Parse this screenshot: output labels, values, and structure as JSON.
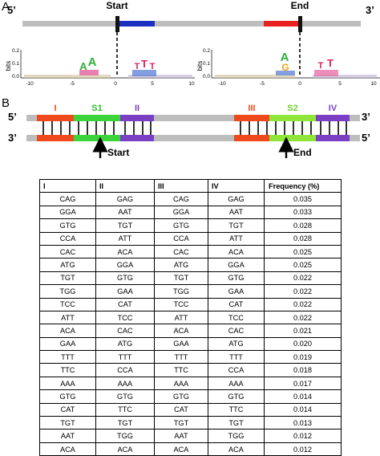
{
  "panel_a": {
    "label": "A",
    "five_prime": "5’",
    "three_prime": "3’",
    "start_label": "Start",
    "end_label": "End",
    "colors": {
      "strand": "#bdbdbd",
      "blue_region": "#1b2fc0",
      "red_region": "#e8201f",
      "marker": "#111111"
    },
    "logos": [
      {
        "y_axis_label": "bits",
        "y_ticks": [
          "0.2",
          "0.1",
          "0.0"
        ],
        "x_ticks": [
          "-10",
          "-5",
          "0",
          "5",
          "10"
        ],
        "letters": [
          "A",
          "A",
          "T",
          "T",
          "T"
        ]
      },
      {
        "y_axis_label": "bits",
        "y_ticks": [
          "0.2",
          "0.1",
          "0.0"
        ],
        "x_ticks": [
          "-10",
          "-5",
          "0",
          "5",
          "10"
        ],
        "letters": [
          "A",
          "G",
          "T",
          "T"
        ]
      }
    ]
  },
  "panel_b": {
    "label": "B",
    "five_prime": "5’",
    "three_prime": "3’",
    "regions": [
      {
        "name": "I",
        "color": "#ef4a1e"
      },
      {
        "name": "S1",
        "color": "#3dd33a"
      },
      {
        "name": "II",
        "color": "#7b3fc4"
      },
      {
        "name": "III",
        "color": "#ef4a1e"
      },
      {
        "name": "S2",
        "color": "#8fe53a"
      },
      {
        "name": "IV",
        "color": "#7b3fc4"
      }
    ],
    "start_label": "Start",
    "end_label": "End"
  },
  "table": {
    "headers": [
      "I",
      "II",
      "III",
      "IV",
      "Frequency (%)"
    ],
    "rows": [
      [
        "CAG",
        "GAG",
        "CAG",
        "GAG",
        "0.035"
      ],
      [
        "GGA",
        "AAT",
        "GGA",
        "AAT",
        "0.033"
      ],
      [
        "GTG",
        "TGT",
        "GTG",
        "TGT",
        "0.028"
      ],
      [
        "CCA",
        "ATT",
        "CCA",
        "ATT",
        "0.028"
      ],
      [
        "CAC",
        "ACA",
        "CAC",
        "ACA",
        "0.025"
      ],
      [
        "ATG",
        "GGA",
        "ATG",
        "GGA",
        "0.025"
      ],
      [
        "TGT",
        "GTG",
        "TGT",
        "GTG",
        "0.022"
      ],
      [
        "TGG",
        "GAA",
        "TGG",
        "GAA",
        "0.022"
      ],
      [
        "TCC",
        "CAT",
        "TCC",
        "CAT",
        "0.022"
      ],
      [
        "ATT",
        "TCC",
        "ATT",
        "TCC",
        "0.022"
      ],
      [
        "ACA",
        "CAC",
        "ACA",
        "CAC",
        "0.021"
      ],
      [
        "GAA",
        "ATG",
        "GAA",
        "ATG",
        "0.020"
      ],
      [
        "TTT",
        "TTT",
        "TTT",
        "TTT",
        "0.019"
      ],
      [
        "TTC",
        "CCA",
        "TTC",
        "CCA",
        "0.018"
      ],
      [
        "AAA",
        "AAA",
        "AAA",
        "AAA",
        "0.017"
      ],
      [
        "GTG",
        "GTG",
        "GTG",
        "GTG",
        "0.014"
      ],
      [
        "CAT",
        "TTC",
        "CAT",
        "TTC",
        "0.014"
      ],
      [
        "TGT",
        "TGT",
        "TGT",
        "TGT",
        "0.013"
      ],
      [
        "AAT",
        "TGG",
        "AAT",
        "TGG",
        "0.012"
      ],
      [
        "ACA",
        "ACA",
        "ACA",
        "ACA",
        "0.012"
      ]
    ]
  }
}
